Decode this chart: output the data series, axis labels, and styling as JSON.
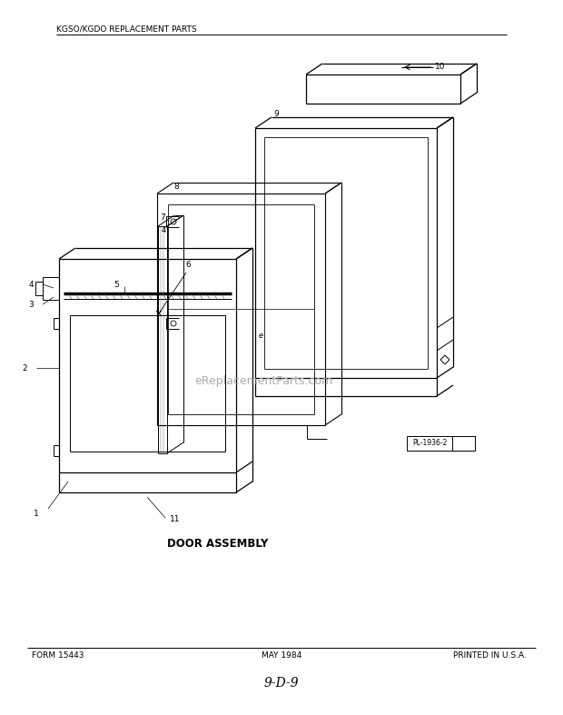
{
  "title_header": "KGSO/KGDO REPLACEMENT PARTS",
  "diagram_title": "DOOR ASSEMBLY",
  "footer_left": "FORM 15443",
  "footer_center": "MAY 1984",
  "footer_right": "PRINTED IN U.S.A.",
  "page_number": "9-D-9",
  "part_label_box": "PL-1936-2",
  "watermark": "eReplacementParts.com",
  "bg_color": "#ffffff",
  "line_color": "#000000"
}
